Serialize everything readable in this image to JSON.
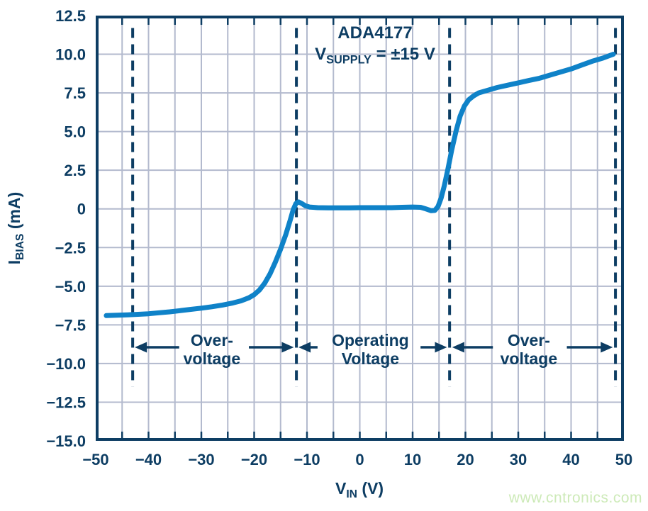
{
  "watermark": {
    "text": "www.cntronics.com",
    "color": "#cdeab8"
  },
  "chart_data": {
    "type": "line",
    "title": "ADA4177",
    "subtitle": {
      "main": "V",
      "sub": "SUPPLY",
      "rest": " = ±15 V"
    },
    "xlabel": {
      "main": "V",
      "sub": "IN",
      "rest": " (V)"
    },
    "ylabel": {
      "main": "I",
      "sub": "BIAS",
      "rest": " (mA)"
    },
    "xlim": [
      -50,
      50
    ],
    "ylim": [
      -15,
      12.5
    ],
    "grid": true,
    "x_grid_step": 5,
    "y_grid_step": 2.5,
    "x_ticks": [
      {
        "v": -50,
        "label": "−50"
      },
      {
        "v": -40,
        "label": "−40"
      },
      {
        "v": -30,
        "label": "−30"
      },
      {
        "v": -20,
        "label": "−20"
      },
      {
        "v": -10,
        "label": "−10"
      },
      {
        "v": 0,
        "label": "0"
      },
      {
        "v": 10,
        "label": "10"
      },
      {
        "v": 20,
        "label": "20"
      },
      {
        "v": 30,
        "label": "30"
      },
      {
        "v": 40,
        "label": "40"
      },
      {
        "v": 50,
        "label": "50"
      }
    ],
    "y_ticks": [
      {
        "v": 12.5,
        "label": "12.5"
      },
      {
        "v": 10,
        "label": "10.0"
      },
      {
        "v": 7.5,
        "label": "7.5"
      },
      {
        "v": 5,
        "label": "5.0"
      },
      {
        "v": 2.5,
        "label": "2.5"
      },
      {
        "v": 0,
        "label": "0"
      },
      {
        "v": -2.5,
        "label": "−2.5"
      },
      {
        "v": -5,
        "label": "−5.0"
      },
      {
        "v": -7.5,
        "label": "−7.5"
      },
      {
        "v": -10,
        "label": "−10.0"
      },
      {
        "v": -12.5,
        "label": "−12.5"
      },
      {
        "v": -15,
        "label": "−15.0"
      }
    ],
    "dashed_lines_v": [
      -43,
      -12,
      17,
      48.4
    ],
    "dashed_span_ma": [
      -11.5,
      11.7
    ],
    "regions": [
      {
        "line1": "Over-",
        "line2": "voltage",
        "center_v": -28,
        "arrows": [
          {
            "tail_v": -34.2,
            "tip_v": -42.6
          },
          {
            "tail_v": -21.0,
            "tip_v": -12.5
          }
        ]
      },
      {
        "line1": "Operating",
        "line2": "Voltage",
        "center_v": 2,
        "arrows": [
          {
            "tail_v": -8.0,
            "tip_v": -11.6
          },
          {
            "tail_v": 11.5,
            "tip_v": 16.5
          }
        ]
      },
      {
        "line1": "Over-",
        "line2": "voltage",
        "center_v": 32,
        "arrows": [
          {
            "tail_v": 25.2,
            "tip_v": 17.5
          },
          {
            "tail_v": 39.2,
            "tip_v": 47.9
          }
        ]
      }
    ],
    "series": [
      {
        "name": "input-bias-current",
        "color": "#0f82c8",
        "points": [
          [
            -48,
            -6.9
          ],
          [
            -46,
            -6.88
          ],
          [
            -44,
            -6.85
          ],
          [
            -42,
            -6.82
          ],
          [
            -40,
            -6.78
          ],
          [
            -38,
            -6.72
          ],
          [
            -36,
            -6.66
          ],
          [
            -34,
            -6.58
          ],
          [
            -32,
            -6.5
          ],
          [
            -30,
            -6.42
          ],
          [
            -28,
            -6.33
          ],
          [
            -26,
            -6.22
          ],
          [
            -24,
            -6.08
          ],
          [
            -22.5,
            -5.95
          ],
          [
            -21,
            -5.75
          ],
          [
            -20,
            -5.55
          ],
          [
            -19,
            -5.25
          ],
          [
            -18,
            -4.8
          ],
          [
            -17,
            -4.2
          ],
          [
            -16,
            -3.45
          ],
          [
            -15,
            -2.6
          ],
          [
            -14,
            -1.65
          ],
          [
            -13.2,
            -0.75
          ],
          [
            -12.6,
            -0.05
          ],
          [
            -12.1,
            0.35
          ],
          [
            -11.6,
            0.45
          ],
          [
            -11,
            0.35
          ],
          [
            -10.3,
            0.2
          ],
          [
            -9.5,
            0.12
          ],
          [
            -8,
            0.08
          ],
          [
            -6,
            0.07
          ],
          [
            -4,
            0.07
          ],
          [
            -2,
            0.07
          ],
          [
            0,
            0.08
          ],
          [
            2,
            0.08
          ],
          [
            4,
            0.08
          ],
          [
            6,
            0.08
          ],
          [
            8,
            0.1
          ],
          [
            10,
            0.12
          ],
          [
            11.5,
            0.1
          ],
          [
            12.5,
            0.0
          ],
          [
            13.5,
            -0.12
          ],
          [
            14.2,
            -0.1
          ],
          [
            14.8,
            0.15
          ],
          [
            15.4,
            0.7
          ],
          [
            16,
            1.5
          ],
          [
            16.7,
            2.6
          ],
          [
            17.4,
            3.8
          ],
          [
            18.2,
            5.0
          ],
          [
            19,
            6.0
          ],
          [
            19.8,
            6.65
          ],
          [
            20.6,
            7.05
          ],
          [
            21.5,
            7.3
          ],
          [
            22.5,
            7.5
          ],
          [
            24,
            7.65
          ],
          [
            26,
            7.85
          ],
          [
            28,
            8.0
          ],
          [
            30,
            8.15
          ],
          [
            32,
            8.3
          ],
          [
            34,
            8.45
          ],
          [
            36,
            8.65
          ],
          [
            38,
            8.85
          ],
          [
            40,
            9.05
          ],
          [
            42,
            9.3
          ],
          [
            44,
            9.55
          ],
          [
            46,
            9.75
          ],
          [
            48,
            10.0
          ]
        ]
      }
    ],
    "colors": {
      "axis": "#0d3d63",
      "grid": "#b3bace",
      "curve": "#0f82c8",
      "background": "#ffffff"
    }
  }
}
